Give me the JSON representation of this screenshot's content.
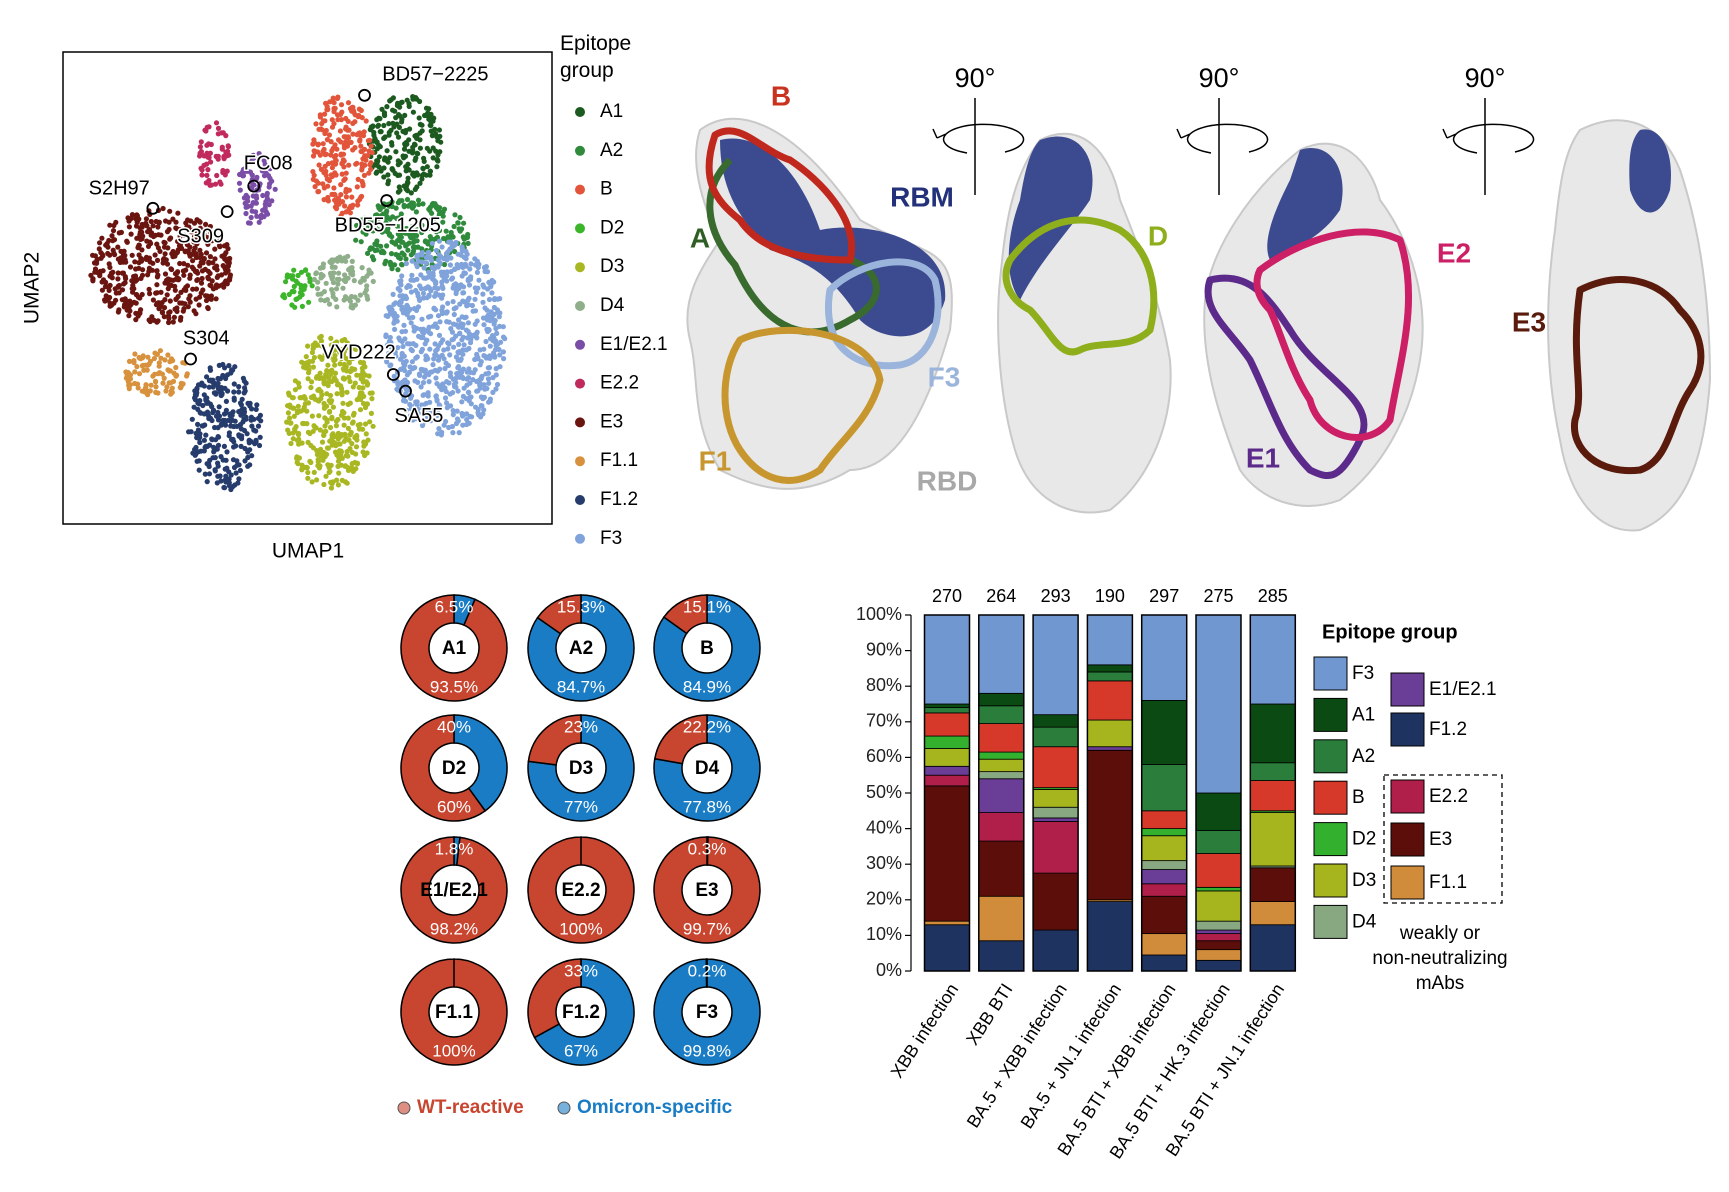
{
  "chart_data": [
    {
      "type": "scatter",
      "xlabel": "UMAP1",
      "ylabel": "UMAP2",
      "legend_title": "Epitope group",
      "series": [
        {
          "name": "A1",
          "color": "#1c5a1f"
        },
        {
          "name": "A2",
          "color": "#2f8a3c"
        },
        {
          "name": "B",
          "color": "#e2553a"
        },
        {
          "name": "D2",
          "color": "#3cb52a"
        },
        {
          "name": "D3",
          "color": "#a9b822"
        },
        {
          "name": "D4",
          "color": "#8fae8a"
        },
        {
          "name": "E1/E2.1",
          "color": "#7a4ea6"
        },
        {
          "name": "E2.2",
          "color": "#c02a5c"
        },
        {
          "name": "E3",
          "color": "#6b1510"
        },
        {
          "name": "F1.1",
          "color": "#d8913c"
        },
        {
          "name": "F1.2",
          "color": "#263c6c"
        },
        {
          "name": "F3",
          "color": "#7fa3da"
        }
      ],
      "annotations": [
        "BD57−2225",
        "FC08",
        "S2H97",
        "S309",
        "BD55−1205",
        "S304",
        "VYD222",
        "SA55"
      ]
    },
    {
      "type": "pie",
      "categories": [
        "WT-reactive",
        "Omicron-specific"
      ],
      "colors": [
        "#c8452f",
        "#1a7cc4"
      ],
      "pies": [
        {
          "title": "A1",
          "values": [
            93.5,
            6.5
          ],
          "value_labels": [
            "93.5%",
            "6.5%"
          ]
        },
        {
          "title": "A2",
          "values": [
            15.3,
            84.7
          ],
          "value_labels": [
            "15.3%",
            "84.7%"
          ]
        },
        {
          "title": "B",
          "values": [
            15.1,
            84.9
          ],
          "value_labels": [
            "15.1%",
            "84.9%"
          ]
        },
        {
          "title": "D2",
          "values": [
            60,
            40
          ],
          "value_labels": [
            "60%",
            "40%"
          ]
        },
        {
          "title": "D3",
          "values": [
            23,
            77
          ],
          "value_labels": [
            "23%",
            "77%"
          ]
        },
        {
          "title": "D4",
          "values": [
            22.2,
            77.8
          ],
          "value_labels": [
            "22.2%",
            "77.8%"
          ]
        },
        {
          "title": "E1/E2.1",
          "values": [
            98.2,
            1.8
          ],
          "value_labels": [
            "98.2%",
            "1.8%"
          ]
        },
        {
          "title": "E2.2",
          "values": [
            100,
            0
          ],
          "value_labels": [
            "100%",
            null
          ]
        },
        {
          "title": "E3",
          "values": [
            99.7,
            0.3
          ],
          "value_labels": [
            "99.7%",
            "0.3%"
          ]
        },
        {
          "title": "F1.1",
          "values": [
            100,
            0
          ],
          "value_labels": [
            "100%",
            null
          ]
        },
        {
          "title": "F1.2",
          "values": [
            33,
            67
          ],
          "value_labels": [
            "33%",
            "67%"
          ]
        },
        {
          "title": "F3",
          "values": [
            0.2,
            99.8
          ],
          "value_labels": [
            "0.2%",
            "99.8%"
          ]
        }
      ]
    },
    {
      "type": "stacked_bar",
      "legend_title": "Epitope group",
      "categories": [
        "XBB infection",
        "XBB BTI",
        "BA.5 + XBB infection",
        "BA.5 + JN.1 infection",
        "BA.5 BTI + XBB infection",
        "BA.5 BTI + HK.3 infection",
        "BA.5 BTI + JN.1 infection"
      ],
      "counts": [
        270,
        264,
        293,
        190,
        297,
        275,
        285
      ],
      "ylim": [
        0,
        100
      ],
      "yticks": [
        {
          "value": 0,
          "label": "0%"
        },
        {
          "value": 10,
          "label": "10%"
        },
        {
          "value": 20,
          "label": "20%"
        },
        {
          "value": 30,
          "label": "30%"
        },
        {
          "value": 40,
          "label": "40%"
        },
        {
          "value": 50,
          "label": "50%"
        },
        {
          "value": 60,
          "label": "60%"
        },
        {
          "value": 70,
          "label": "70%"
        },
        {
          "value": 80,
          "label": "80%"
        },
        {
          "value": 90,
          "label": "90%"
        },
        {
          "value": 100,
          "label": "100%"
        }
      ],
      "series": [
        {
          "name": "F1.2",
          "color": "#1f3360",
          "values": [
            13,
            8.5,
            11.5,
            19.5,
            4.5,
            3,
            13
          ]
        },
        {
          "name": "F1.1",
          "color": "#d08c3a",
          "values": [
            1,
            12.5,
            0,
            0.5,
            6,
            3,
            6.5
          ]
        },
        {
          "name": "E3",
          "color": "#5c0f0a",
          "values": [
            38,
            15.5,
            16,
            42,
            10.5,
            2.5,
            9.5
          ]
        },
        {
          "name": "E2.2",
          "color": "#b01f4a",
          "values": [
            3,
            8,
            14.5,
            0,
            3.5,
            2,
            0
          ]
        },
        {
          "name": "E1/E2.1",
          "color": "#6a3d96",
          "values": [
            2.5,
            9.5,
            1,
            1,
            4,
            1,
            0
          ]
        },
        {
          "name": "D4",
          "color": "#88a882",
          "values": [
            0,
            2,
            3,
            0,
            2.5,
            2.5,
            0.5
          ]
        },
        {
          "name": "D3",
          "color": "#a6b51e",
          "values": [
            5,
            3.5,
            5,
            7.5,
            7,
            8.5,
            15
          ]
        },
        {
          "name": "D2",
          "color": "#33b02d",
          "values": [
            3.5,
            2,
            0.5,
            0,
            2,
            1,
            0.5
          ]
        },
        {
          "name": "B",
          "color": "#d6392a",
          "values": [
            6.5,
            8,
            11.5,
            11,
            5,
            9.5,
            8.5
          ]
        },
        {
          "name": "A2",
          "color": "#2a7d3b",
          "values": [
            1.5,
            5,
            5.5,
            2.5,
            13,
            6.5,
            5
          ]
        },
        {
          "name": "A1",
          "color": "#0b4a12",
          "values": [
            1,
            3.5,
            3.5,
            2,
            18,
            10.5,
            16.5
          ]
        },
        {
          "name": "F3",
          "color": "#7097d0",
          "values": [
            25,
            22,
            28,
            14,
            24,
            50,
            25
          ]
        }
      ],
      "annotation": [
        "weakly or",
        "non-neutralizing",
        "mAbs"
      ]
    }
  ],
  "structure_panel": {
    "labels": [
      "B",
      "A",
      "RBM",
      "F3",
      "F1",
      "RBD",
      "D",
      "E2",
      "E1",
      "E3"
    ],
    "rotation_labels": [
      "90°",
      "90°",
      "90°"
    ]
  }
}
